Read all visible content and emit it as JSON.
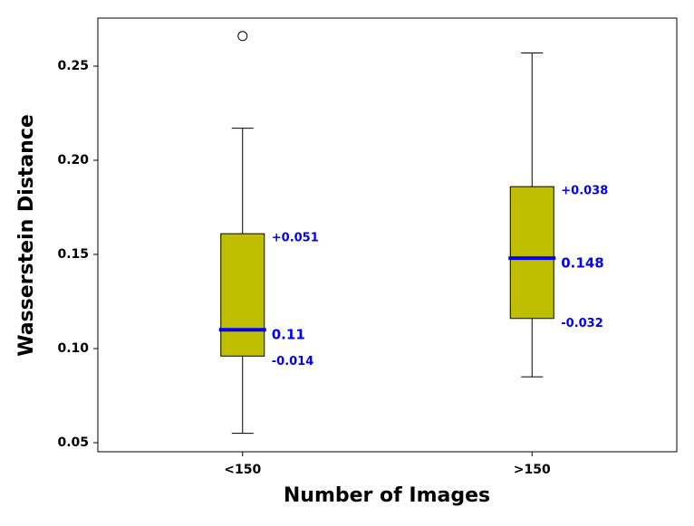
{
  "chart_data": {
    "type": "box",
    "x_label": "Number of Images",
    "y_label": "Wasserstein Distance",
    "categories": [
      "<150",
      ">150"
    ],
    "boxes": [
      {
        "whislo": 0.055,
        "q1": 0.096,
        "med": 0.11,
        "q3": 0.161,
        "whishi": 0.217,
        "fliers": [
          0.266
        ],
        "q3_label": "+0.051",
        "q1_label": "-0.014"
      },
      {
        "whislo": 0.085,
        "q1": 0.116,
        "med": 0.148,
        "q3": 0.186,
        "whishi": 0.257,
        "fliers": [],
        "q3_label": "+0.038",
        "q1_label": "-0.032"
      }
    ],
    "box_color": "#bfbf00",
    "median_color": "#0000ff",
    "label_color": "#0000ff",
    "ylim": [
      0.0452,
      0.2755
    ],
    "yticks": [
      0.05,
      {
        "value": 0.1,
        "label": "0.10"
      },
      0.15,
      {
        "value": 0.2,
        "label": "0.20"
      },
      0.25
    ]
  }
}
